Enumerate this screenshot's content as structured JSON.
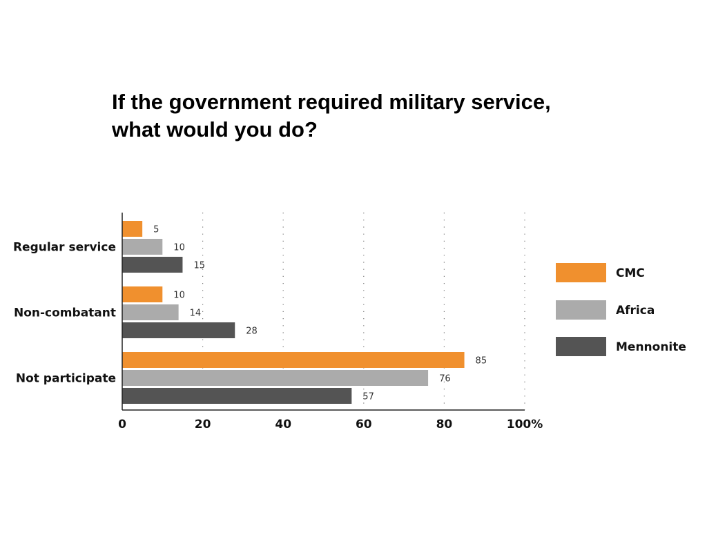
{
  "chart_data": {
    "type": "bar",
    "orientation": "horizontal",
    "title_lines": [
      "If the government required military service,",
      "what would you do?"
    ],
    "categories": [
      "Regular service",
      "Non-combatant",
      "Not participate"
    ],
    "series": [
      {
        "name": "CMC",
        "color": "#F0902E",
        "values": [
          5,
          10,
          85
        ]
      },
      {
        "name": "Africa",
        "color": "#ABABAB",
        "values": [
          10,
          14,
          76
        ]
      },
      {
        "name": "Mennonite",
        "color": "#545454",
        "values": [
          15,
          28,
          57
        ]
      }
    ],
    "xlim": [
      0,
      100
    ],
    "xticks": [
      0,
      20,
      40,
      60,
      80,
      100
    ],
    "xtick_labels": [
      "0",
      "20",
      "40",
      "60",
      "80",
      "100%"
    ],
    "grid": "vertical-dotted",
    "legend_position": "right"
  }
}
